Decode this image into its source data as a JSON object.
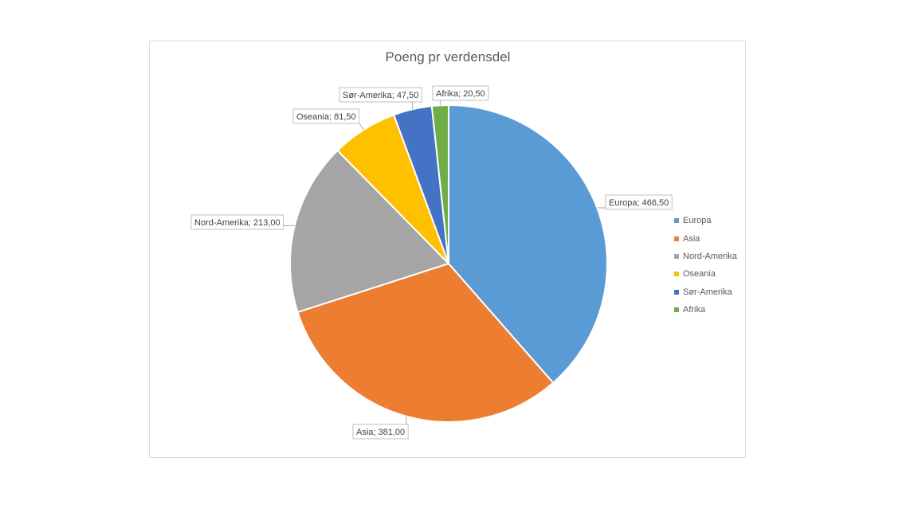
{
  "chart_data": {
    "type": "pie",
    "title": "Poeng pr verdensdel",
    "legend_position": "right",
    "slices": [
      {
        "name": "Europa",
        "value": 466.5,
        "label": "Europa; 466,50",
        "color": "#5B9BD5"
      },
      {
        "name": "Asia",
        "value": 381.0,
        "label": "Asia; 381,00",
        "color": "#ED7D31"
      },
      {
        "name": "Nord-Amerika",
        "value": 213.0,
        "label": "Nord-Amerika; 213,00",
        "color": "#A5A5A5"
      },
      {
        "name": "Oseania",
        "value": 81.5,
        "label": "Oseania; 81,50",
        "color": "#FFC000"
      },
      {
        "name": "Sør-Amerika",
        "value": 47.5,
        "label": "Sør-Amerika; 47,50",
        "color": "#4472C4"
      },
      {
        "name": "Afrika",
        "value": 20.5,
        "label": "Afrika; 20,50",
        "color": "#70AD47"
      }
    ]
  }
}
